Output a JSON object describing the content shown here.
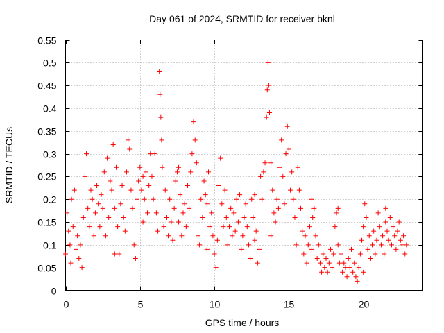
{
  "chart_data": {
    "type": "scatter",
    "title": "Day 061 of 2024, SRMTID for receiver bknl",
    "xlabel": "GPS time / hours",
    "ylabel": "SRMTID / TECUs",
    "xlim": [
      0,
      24
    ],
    "ylim": [
      0,
      0.55
    ],
    "xticks": [
      0,
      5,
      10,
      15,
      20
    ],
    "xtick_labels": [
      "0",
      "5",
      "10",
      "15",
      "20"
    ],
    "yticks": [
      0,
      0.05,
      0.1,
      0.15,
      0.2,
      0.25,
      0.3,
      0.35,
      0.4,
      0.45,
      0.5,
      0.55
    ],
    "ytick_labels": [
      "0",
      "0.05",
      "0.1",
      "0.15",
      "0.2",
      "0.25",
      "0.3",
      "0.35",
      "0.4",
      "0.45",
      "0.5",
      "0.55"
    ],
    "grid": true,
    "marker": "+",
    "color": "#ff0000",
    "series": [
      {
        "name": "SRMTID",
        "points": [
          [
            0.0,
            0.08
          ],
          [
            0.1,
            0.17
          ],
          [
            0.2,
            0.13
          ],
          [
            0.3,
            0.1
          ],
          [
            0.35,
            0.06
          ],
          [
            0.5,
            0.14
          ],
          [
            0.6,
            0.22
          ],
          [
            0.7,
            0.09
          ],
          [
            0.8,
            0.12
          ],
          [
            0.9,
            0.07
          ],
          [
            1.0,
            0.1
          ],
          [
            1.1,
            0.05
          ],
          [
            1.2,
            0.16
          ],
          [
            1.3,
            0.25
          ],
          [
            1.4,
            0.3
          ],
          [
            1.5,
            0.18
          ],
          [
            1.6,
            0.14
          ],
          [
            1.8,
            0.2
          ],
          [
            1.9,
            0.12
          ],
          [
            2.0,
            0.17
          ],
          [
            2.1,
            0.23
          ],
          [
            2.2,
            0.19
          ],
          [
            2.3,
            0.14
          ],
          [
            2.4,
            0.21
          ],
          [
            2.5,
            0.18
          ],
          [
            2.6,
            0.26
          ],
          [
            2.7,
            0.12
          ],
          [
            2.8,
            0.29
          ],
          [
            2.9,
            0.16
          ],
          [
            3.0,
            0.24
          ],
          [
            3.1,
            0.22
          ],
          [
            3.2,
            0.32
          ],
          [
            3.3,
            0.18
          ],
          [
            3.4,
            0.27
          ],
          [
            3.5,
            0.14
          ],
          [
            3.6,
            0.08
          ],
          [
            3.7,
            0.19
          ],
          [
            3.8,
            0.23
          ],
          [
            3.9,
            0.16
          ],
          [
            4.0,
            0.13
          ],
          [
            4.1,
            0.26
          ],
          [
            4.2,
            0.33
          ],
          [
            4.3,
            0.31
          ],
          [
            4.4,
            0.22
          ],
          [
            4.5,
            0.18
          ],
          [
            4.6,
            0.1
          ],
          [
            4.7,
            0.07
          ],
          [
            4.8,
            0.2
          ],
          [
            4.9,
            0.24
          ],
          [
            5.0,
            0.27
          ],
          [
            5.1,
            0.22
          ],
          [
            5.2,
            0.25
          ],
          [
            5.3,
            0.2
          ],
          [
            5.4,
            0.26
          ],
          [
            5.5,
            0.17
          ],
          [
            5.6,
            0.23
          ],
          [
            5.7,
            0.3
          ],
          [
            5.8,
            0.25
          ],
          [
            5.9,
            0.2
          ],
          [
            6.0,
            0.3
          ],
          [
            6.1,
            0.17
          ],
          [
            6.2,
            0.13
          ],
          [
            6.3,
            0.48
          ],
          [
            6.35,
            0.43
          ],
          [
            6.4,
            0.38
          ],
          [
            6.45,
            0.33
          ],
          [
            6.5,
            0.27
          ],
          [
            6.6,
            0.14
          ],
          [
            6.7,
            0.22
          ],
          [
            6.8,
            0.16
          ],
          [
            6.9,
            0.12
          ],
          [
            7.0,
            0.2
          ],
          [
            7.1,
            0.15
          ],
          [
            7.2,
            0.11
          ],
          [
            7.3,
            0.18
          ],
          [
            7.4,
            0.24
          ],
          [
            7.5,
            0.26
          ],
          [
            7.6,
            0.15
          ],
          [
            7.7,
            0.21
          ],
          [
            7.8,
            0.12
          ],
          [
            7.9,
            0.17
          ],
          [
            8.0,
            0.19
          ],
          [
            8.1,
            0.14
          ],
          [
            8.2,
            0.23
          ],
          [
            8.3,
            0.18
          ],
          [
            8.4,
            0.26
          ],
          [
            8.5,
            0.3
          ],
          [
            8.6,
            0.37
          ],
          [
            8.7,
            0.33
          ],
          [
            8.8,
            0.28
          ],
          [
            8.9,
            0.12
          ],
          [
            9.0,
            0.1
          ],
          [
            9.1,
            0.2
          ],
          [
            9.2,
            0.16
          ],
          [
            9.3,
            0.24
          ],
          [
            9.4,
            0.21
          ],
          [
            9.5,
            0.19
          ],
          [
            9.6,
            0.26
          ],
          [
            9.7,
            0.14
          ],
          [
            9.8,
            0.17
          ],
          [
            9.9,
            0.12
          ],
          [
            10.0,
            0.08
          ],
          [
            10.1,
            0.05
          ],
          [
            10.2,
            0.11
          ],
          [
            10.3,
            0.23
          ],
          [
            10.4,
            0.29
          ],
          [
            10.5,
            0.19
          ],
          [
            10.6,
            0.14
          ],
          [
            10.7,
            0.22
          ],
          [
            10.8,
            0.16
          ],
          [
            10.9,
            0.1
          ],
          [
            11.0,
            0.14
          ],
          [
            11.1,
            0.18
          ],
          [
            11.2,
            0.12
          ],
          [
            11.3,
            0.17
          ],
          [
            11.4,
            0.13
          ],
          [
            11.5,
            0.2
          ],
          [
            11.6,
            0.15
          ],
          [
            11.7,
            0.21
          ],
          [
            11.8,
            0.09
          ],
          [
            11.9,
            0.12
          ],
          [
            12.0,
            0.16
          ],
          [
            12.1,
            0.19
          ],
          [
            12.2,
            0.14
          ],
          [
            12.3,
            0.1
          ],
          [
            12.4,
            0.07
          ],
          [
            12.5,
            0.2
          ],
          [
            12.6,
            0.16
          ],
          [
            12.7,
            0.11
          ],
          [
            12.8,
            0.13
          ],
          [
            12.9,
            0.06
          ],
          [
            13.0,
            0.09
          ],
          [
            13.1,
            0.25
          ],
          [
            13.2,
            0.2
          ],
          [
            13.3,
            0.26
          ],
          [
            13.4,
            0.28
          ],
          [
            13.5,
            0.38
          ],
          [
            13.55,
            0.44
          ],
          [
            13.6,
            0.5
          ],
          [
            13.65,
            0.45
          ],
          [
            13.7,
            0.39
          ],
          [
            13.8,
            0.28
          ],
          [
            13.9,
            0.22
          ],
          [
            14.0,
            0.17
          ],
          [
            14.1,
            0.15
          ],
          [
            14.2,
            0.2
          ],
          [
            14.3,
            0.18
          ],
          [
            14.4,
            0.27
          ],
          [
            14.5,
            0.33
          ],
          [
            14.6,
            0.25
          ],
          [
            14.7,
            0.19
          ],
          [
            14.8,
            0.3
          ],
          [
            14.9,
            0.36
          ],
          [
            15.0,
            0.31
          ],
          [
            15.1,
            0.22
          ],
          [
            15.2,
            0.26
          ],
          [
            15.3,
            0.2
          ],
          [
            15.4,
            0.16
          ],
          [
            15.5,
            0.1
          ],
          [
            15.6,
            0.27
          ],
          [
            15.7,
            0.22
          ],
          [
            15.8,
            0.18
          ],
          [
            15.9,
            0.13
          ],
          [
            16.0,
            0.08
          ],
          [
            16.1,
            0.12
          ],
          [
            16.2,
            0.06
          ],
          [
            16.3,
            0.1
          ],
          [
            16.4,
            0.14
          ],
          [
            16.5,
            0.09
          ],
          [
            16.6,
            0.16
          ],
          [
            16.7,
            0.18
          ],
          [
            16.8,
            0.12
          ],
          [
            16.9,
            0.07
          ],
          [
            17.0,
            0.1
          ],
          [
            17.1,
            0.06
          ],
          [
            17.2,
            0.04
          ],
          [
            17.3,
            0.08
          ],
          [
            17.4,
            0.05
          ],
          [
            17.5,
            0.07
          ],
          [
            17.6,
            0.04
          ],
          [
            17.7,
            0.06
          ],
          [
            17.8,
            0.09
          ],
          [
            17.9,
            0.05
          ],
          [
            18.0,
            0.08
          ],
          [
            18.1,
            0.14
          ],
          [
            18.2,
            0.17
          ],
          [
            18.3,
            0.1
          ],
          [
            18.4,
            0.06
          ],
          [
            18.5,
            0.08
          ],
          [
            18.6,
            0.04
          ],
          [
            18.7,
            0.06
          ],
          [
            18.8,
            0.05
          ],
          [
            18.9,
            0.03
          ],
          [
            19.0,
            0.07
          ],
          [
            19.1,
            0.05
          ],
          [
            19.2,
            0.09
          ],
          [
            19.3,
            0.04
          ],
          [
            19.4,
            0.06
          ],
          [
            19.5,
            0.03
          ],
          [
            19.6,
            0.02
          ],
          [
            19.7,
            0.05
          ],
          [
            19.8,
            0.08
          ],
          [
            19.9,
            0.11
          ],
          [
            20.0,
            0.14
          ],
          [
            20.1,
            0.19
          ],
          [
            20.2,
            0.16
          ],
          [
            20.3,
            0.09
          ],
          [
            20.4,
            0.12
          ],
          [
            20.5,
            0.07
          ],
          [
            20.6,
            0.1
          ],
          [
            20.7,
            0.13
          ],
          [
            20.8,
            0.08
          ],
          [
            20.9,
            0.11
          ],
          [
            21.0,
            0.17
          ],
          [
            21.1,
            0.14
          ],
          [
            21.2,
            0.1
          ],
          [
            21.3,
            0.12
          ],
          [
            21.4,
            0.08
          ],
          [
            21.5,
            0.15
          ],
          [
            21.6,
            0.13
          ],
          [
            21.7,
            0.11
          ],
          [
            21.8,
            0.16
          ],
          [
            21.9,
            0.1
          ],
          [
            22.0,
            0.14
          ],
          [
            22.1,
            0.12
          ],
          [
            22.2,
            0.09
          ],
          [
            22.3,
            0.13
          ],
          [
            22.4,
            0.15
          ],
          [
            22.5,
            0.11
          ],
          [
            22.6,
            0.1
          ],
          [
            22.7,
            0.12
          ],
          [
            22.8,
            0.08
          ],
          [
            0.4,
            0.2
          ],
          [
            1.7,
            0.22
          ],
          [
            3.3,
            0.08
          ],
          [
            5.2,
            0.15
          ],
          [
            7.6,
            0.27
          ],
          [
            9.5,
            0.09
          ],
          [
            12.7,
            0.21
          ],
          [
            13.8,
            0.12
          ],
          [
            16.5,
            0.2
          ],
          [
            18.3,
            0.18
          ],
          [
            20.0,
            0.04
          ],
          [
            21.5,
            0.18
          ],
          [
            22.9,
            0.1
          ]
        ]
      }
    ]
  }
}
